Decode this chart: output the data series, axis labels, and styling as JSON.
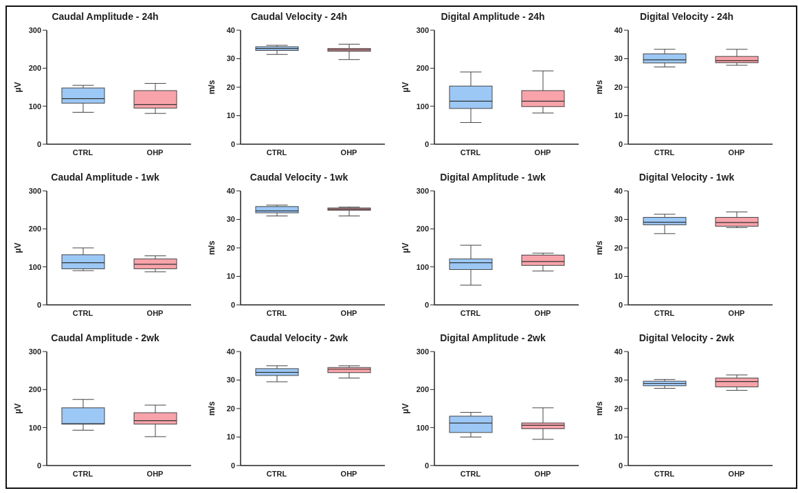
{
  "chart_data": [
    {
      "type": "box",
      "title": "Caudal Amplitude - 24h",
      "ylabel": "µV",
      "categories": [
        "CTRL",
        "OHP"
      ],
      "colors": [
        "#9cc8f6",
        "#f8a3aa"
      ],
      "ylim": [
        0,
        300
      ],
      "yticks": [
        0,
        100,
        200,
        300
      ],
      "boxes": [
        {
          "low": 84,
          "q1": 108,
          "median": 120,
          "q3": 148,
          "high": 155
        },
        {
          "low": 81,
          "q1": 95,
          "median": 104,
          "q3": 141,
          "high": 160
        }
      ]
    },
    {
      "type": "box",
      "title": "Caudal Velocity - 24h",
      "ylabel": "m/s",
      "categories": [
        "CTRL",
        "OHP"
      ],
      "colors": [
        "#9cc8f6",
        "#f8a3aa"
      ],
      "ylim": [
        0,
        40
      ],
      "yticks": [
        0,
        10,
        20,
        30,
        40
      ],
      "boxes": [
        {
          "low": 31.5,
          "q1": 32.9,
          "median": 33.6,
          "q3": 34.2,
          "high": 34.7
        },
        {
          "low": 29.7,
          "q1": 32.6,
          "median": 33.1,
          "q3": 33.6,
          "high": 35.1
        }
      ]
    },
    {
      "type": "box",
      "title": "Digital Amplitude - 24h",
      "ylabel": "µV",
      "categories": [
        "CTRL",
        "OHP"
      ],
      "colors": [
        "#9cc8f6",
        "#f8a3aa"
      ],
      "ylim": [
        0,
        300
      ],
      "yticks": [
        0,
        100,
        200,
        300
      ],
      "boxes": [
        {
          "low": 57,
          "q1": 94,
          "median": 113,
          "q3": 153,
          "high": 190
        },
        {
          "low": 82,
          "q1": 99,
          "median": 113,
          "q3": 141,
          "high": 193
        }
      ]
    },
    {
      "type": "box",
      "title": "Digital Velocity - 24h",
      "ylabel": "m/s",
      "categories": [
        "CTRL",
        "OHP"
      ],
      "colors": [
        "#9cc8f6",
        "#f8a3aa"
      ],
      "ylim": [
        0,
        40
      ],
      "yticks": [
        0,
        10,
        20,
        30,
        40
      ],
      "boxes": [
        {
          "low": 27.1,
          "q1": 28.5,
          "median": 29.6,
          "q3": 31.7,
          "high": 33.3
        },
        {
          "low": 27.7,
          "q1": 28.6,
          "median": 29.3,
          "q3": 30.8,
          "high": 33.3
        }
      ]
    },
    {
      "type": "box",
      "title": "Caudal Amplitude - 1wk",
      "ylabel": "µV",
      "categories": [
        "CTRL",
        "OHP"
      ],
      "colors": [
        "#9cc8f6",
        "#f8a3aa"
      ],
      "ylim": [
        0,
        300
      ],
      "yticks": [
        0,
        100,
        200,
        300
      ],
      "boxes": [
        {
          "low": 90,
          "q1": 95,
          "median": 111,
          "q3": 132,
          "high": 150
        },
        {
          "low": 87,
          "q1": 95,
          "median": 107,
          "q3": 121,
          "high": 129
        }
      ]
    },
    {
      "type": "box",
      "title": "Caudal Velocity - 1wk",
      "ylabel": "m/s",
      "categories": [
        "CTRL",
        "OHP"
      ],
      "colors": [
        "#9cc8f6",
        "#f8a3aa"
      ],
      "ylim": [
        0,
        40
      ],
      "yticks": [
        0,
        10,
        20,
        30,
        40
      ],
      "boxes": [
        {
          "low": 31.2,
          "q1": 32.3,
          "median": 33,
          "q3": 34.5,
          "high": 35
        },
        {
          "low": 31.2,
          "q1": 33.2,
          "median": 33.6,
          "q3": 34,
          "high": 34.3
        }
      ]
    },
    {
      "type": "box",
      "title": "Digital Amplitude - 1wk",
      "ylabel": "µV",
      "categories": [
        "CTRL",
        "OHP"
      ],
      "colors": [
        "#9cc8f6",
        "#f8a3aa"
      ],
      "ylim": [
        0,
        300
      ],
      "yticks": [
        0,
        100,
        200,
        300
      ],
      "boxes": [
        {
          "low": 52,
          "q1": 93,
          "median": 111,
          "q3": 121,
          "high": 157
        },
        {
          "low": 89,
          "q1": 104,
          "median": 114,
          "q3": 131,
          "high": 136
        }
      ]
    },
    {
      "type": "box",
      "title": "Digital Velocity - 1wk",
      "ylabel": "m/s",
      "categories": [
        "CTRL",
        "OHP"
      ],
      "colors": [
        "#9cc8f6",
        "#f8a3aa"
      ],
      "ylim": [
        0,
        40
      ],
      "yticks": [
        0,
        10,
        20,
        30,
        40
      ],
      "boxes": [
        {
          "low": 25,
          "q1": 28.1,
          "median": 29,
          "q3": 30.7,
          "high": 31.8
        },
        {
          "low": 27.1,
          "q1": 27.6,
          "median": 28.9,
          "q3": 30.7,
          "high": 32.6
        }
      ]
    },
    {
      "type": "box",
      "title": "Caudal Amplitude - 2wk",
      "ylabel": "µV",
      "categories": [
        "CTRL",
        "OHP"
      ],
      "colors": [
        "#9cc8f6",
        "#f8a3aa"
      ],
      "ylim": [
        0,
        300
      ],
      "yticks": [
        0,
        100,
        200,
        300
      ],
      "boxes": [
        {
          "low": 93,
          "q1": 109,
          "median": 110,
          "q3": 152,
          "high": 174
        },
        {
          "low": 76,
          "q1": 109,
          "median": 118,
          "q3": 139,
          "high": 159
        }
      ]
    },
    {
      "type": "box",
      "title": "Caudal Velocity - 2wk",
      "ylabel": "m/s",
      "categories": [
        "CTRL",
        "OHP"
      ],
      "colors": [
        "#9cc8f6",
        "#f8a3aa"
      ],
      "ylim": [
        0,
        40
      ],
      "yticks": [
        0,
        10,
        20,
        30,
        40
      ],
      "boxes": [
        {
          "low": 29.4,
          "q1": 31.6,
          "median": 32.7,
          "q3": 34,
          "high": 35
        },
        {
          "low": 30.7,
          "q1": 32.6,
          "median": 33.8,
          "q3": 34.4,
          "high": 35
        }
      ]
    },
    {
      "type": "box",
      "title": "Digital Amplitude - 2wk",
      "ylabel": "µV",
      "categories": [
        "CTRL",
        "OHP"
      ],
      "colors": [
        "#9cc8f6",
        "#f8a3aa"
      ],
      "ylim": [
        0,
        300
      ],
      "yticks": [
        0,
        100,
        200,
        300
      ],
      "boxes": [
        {
          "low": 75,
          "q1": 87,
          "median": 112,
          "q3": 130,
          "high": 140
        },
        {
          "low": 69,
          "q1": 97,
          "median": 106,
          "q3": 112,
          "high": 152
        }
      ]
    },
    {
      "type": "box",
      "title": "Digital Velocity - 2wk",
      "ylabel": "m/s",
      "categories": [
        "CTRL",
        "OHP"
      ],
      "colors": [
        "#9cc8f6",
        "#f8a3aa"
      ],
      "ylim": [
        0,
        40
      ],
      "yticks": [
        0,
        10,
        20,
        30,
        40
      ],
      "boxes": [
        {
          "low": 27.1,
          "q1": 28,
          "median": 28.8,
          "q3": 29.6,
          "high": 30.2
        },
        {
          "low": 26.4,
          "q1": 27.6,
          "median": 29.5,
          "q3": 30.7,
          "high": 31.8
        }
      ]
    }
  ]
}
